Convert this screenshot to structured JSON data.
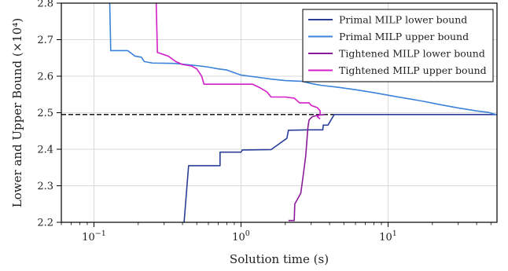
{
  "chart_data": {
    "type": "line",
    "xlabel": "Solution time (s)",
    "ylabel": "Lower and Upper Bound (×10⁴)",
    "x_scale": "log",
    "xlim": [
      0.06,
      55
    ],
    "ylim": [
      2.2,
      2.8
    ],
    "grid": true,
    "legend_position": "top-right",
    "x_ticks": [
      {
        "value": 0.1,
        "base": "10",
        "exp": "−1"
      },
      {
        "value": 1,
        "base": "10",
        "exp": "0"
      },
      {
        "value": 10,
        "base": "10",
        "exp": "1"
      }
    ],
    "y_ticks": [
      2.2,
      2.3,
      2.4,
      2.5,
      2.6,
      2.7,
      2.8
    ],
    "y_tick_labels": [
      "2.2",
      "2.3",
      "2.4",
      "2.5",
      "2.6",
      "2.7",
      "2.8"
    ],
    "reference_line": {
      "y": 2.495,
      "style": "dashed",
      "color": "#000000"
    },
    "series": [
      {
        "name": "Primal MILP lower bound",
        "color": "#2b3f99",
        "points": [
          [
            0.41,
            2.2
          ],
          [
            0.44,
            2.355
          ],
          [
            0.72,
            2.355
          ],
          [
            0.72,
            2.392
          ],
          [
            1.0,
            2.392
          ],
          [
            1.02,
            2.398
          ],
          [
            1.6,
            2.399
          ],
          [
            2.05,
            2.43
          ],
          [
            2.1,
            2.452
          ],
          [
            2.9,
            2.453
          ],
          [
            3.6,
            2.453
          ],
          [
            3.62,
            2.466
          ],
          [
            3.9,
            2.466
          ],
          [
            4.3,
            2.495
          ],
          [
            55,
            2.495
          ]
        ]
      },
      {
        "name": "Primal MILP upper bound",
        "color": "#3b82d9",
        "points": [
          [
            0.128,
            2.8
          ],
          [
            0.13,
            2.67
          ],
          [
            0.17,
            2.67
          ],
          [
            0.19,
            2.655
          ],
          [
            0.21,
            2.652
          ],
          [
            0.22,
            2.64
          ],
          [
            0.25,
            2.636
          ],
          [
            0.35,
            2.635
          ],
          [
            0.4,
            2.633
          ],
          [
            0.5,
            2.629
          ],
          [
            0.6,
            2.625
          ],
          [
            0.7,
            2.62
          ],
          [
            0.8,
            2.617
          ],
          [
            1.0,
            2.603
          ],
          [
            1.3,
            2.597
          ],
          [
            1.6,
            2.592
          ],
          [
            2.0,
            2.588
          ],
          [
            2.6,
            2.586
          ],
          [
            3.0,
            2.58
          ],
          [
            3.5,
            2.575
          ],
          [
            4.5,
            2.57
          ],
          [
            6,
            2.563
          ],
          [
            8,
            2.555
          ],
          [
            10,
            2.548
          ],
          [
            13,
            2.54
          ],
          [
            17,
            2.532
          ],
          [
            22,
            2.523
          ],
          [
            30,
            2.513
          ],
          [
            40,
            2.505
          ],
          [
            48,
            2.501
          ],
          [
            53,
            2.496
          ],
          [
            55,
            2.494
          ]
        ]
      },
      {
        "name": "Tightened MILP lower bound",
        "color": "#8b1a9a",
        "points": [
          [
            2.1,
            2.205
          ],
          [
            2.3,
            2.205
          ],
          [
            2.32,
            2.25
          ],
          [
            2.55,
            2.28
          ],
          [
            2.65,
            2.33
          ],
          [
            2.75,
            2.38
          ],
          [
            2.8,
            2.42
          ],
          [
            2.85,
            2.46
          ],
          [
            2.9,
            2.48
          ],
          [
            3.05,
            2.489
          ],
          [
            3.3,
            2.493
          ],
          [
            3.7,
            2.495
          ]
        ]
      },
      {
        "name": "Tightened MILP upper bound",
        "color": "#d21fc7",
        "points": [
          [
            0.265,
            2.8
          ],
          [
            0.27,
            2.665
          ],
          [
            0.32,
            2.655
          ],
          [
            0.36,
            2.64
          ],
          [
            0.4,
            2.632
          ],
          [
            0.46,
            2.628
          ],
          [
            0.5,
            2.62
          ],
          [
            0.52,
            2.61
          ],
          [
            0.54,
            2.6
          ],
          [
            0.56,
            2.578
          ],
          [
            0.8,
            2.578
          ],
          [
            1.2,
            2.578
          ],
          [
            1.35,
            2.568
          ],
          [
            1.5,
            2.557
          ],
          [
            1.6,
            2.543
          ],
          [
            2.0,
            2.543
          ],
          [
            2.3,
            2.54
          ],
          [
            2.5,
            2.527
          ],
          [
            2.9,
            2.527
          ],
          [
            3.0,
            2.52
          ],
          [
            3.3,
            2.514
          ],
          [
            3.45,
            2.505
          ],
          [
            3.45,
            2.495
          ],
          [
            3.3,
            2.489
          ],
          [
            3.45,
            2.483
          ]
        ]
      }
    ]
  }
}
